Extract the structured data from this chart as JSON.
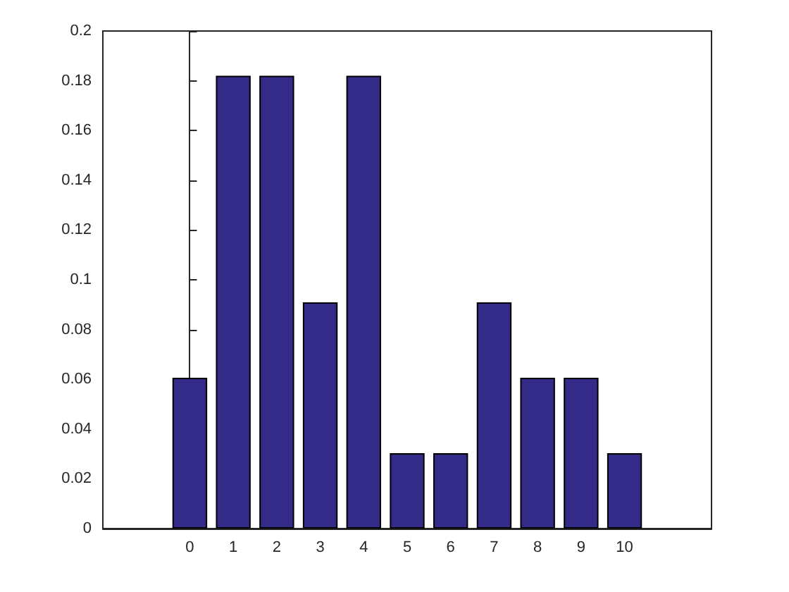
{
  "chart_data": {
    "type": "bar",
    "x": [
      0,
      1,
      2,
      3,
      4,
      5,
      6,
      7,
      8,
      9,
      10
    ],
    "values": [
      0.0606,
      0.182,
      0.182,
      0.0909,
      0.182,
      0.0303,
      0.0303,
      0.0909,
      0.0606,
      0.0606,
      0.0303
    ],
    "color": "#342a87",
    "xlim": [
      -2,
      12
    ],
    "xticks": [
      0,
      1,
      2,
      3,
      4,
      5,
      6,
      7,
      8,
      9,
      10
    ],
    "ylim": [
      0,
      0.2
    ],
    "yticks": [
      0,
      0.02,
      0.04,
      0.06,
      0.08,
      0.1,
      0.12,
      0.14,
      0.16,
      0.18,
      0.2
    ]
  }
}
